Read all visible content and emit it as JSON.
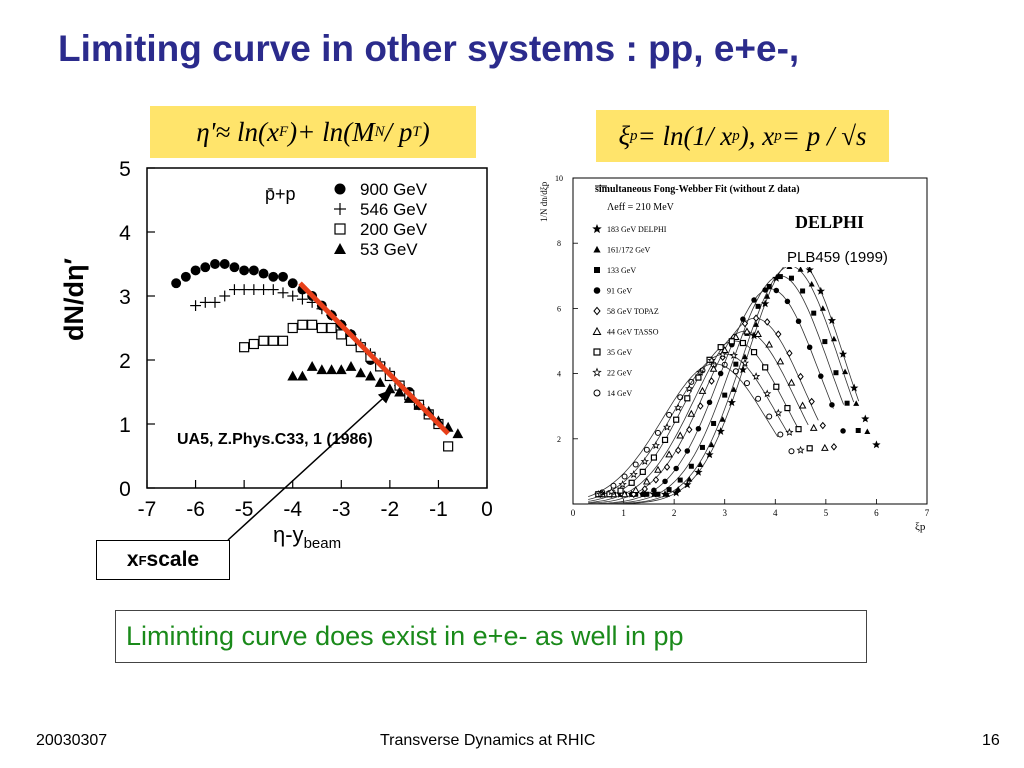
{
  "slide": {
    "title": "Limiting curve in other systems : pp, e+e-,",
    "conclusion": "Liminting curve does exist in e+e- as well in pp",
    "xf_label": "x",
    "xf_sub": "F",
    "xf_suffix": " scale",
    "ylabel_outer": "dN/dη′"
  },
  "formulas": {
    "left_parts": [
      "η'≈ ln(x",
      "F",
      ")+ ln(M",
      "N",
      " / p",
      "T",
      ")"
    ],
    "right_parts": [
      "ξ",
      "p",
      " = ln(1/ x",
      "p",
      "), x",
      "p",
      " = p / √s"
    ]
  },
  "footer": {
    "date": "20030307",
    "center": "Transverse Dynamics at RHIC",
    "page": "16"
  },
  "colors": {
    "title": "#2b2b8c",
    "formula_bg": "#ffe46b",
    "conclusion_text": "#1a8a1a",
    "fit_line": "#e8401a"
  },
  "chart_data": [
    {
      "type": "scatter",
      "title": "",
      "xlabel": "η-y",
      "xlabel_sub": "beam",
      "ylabel": "",
      "xlim": [
        -7,
        0
      ],
      "ylim": [
        0,
        5
      ],
      "xticks": [
        "-7",
        "-6",
        "-5",
        "-4",
        "-3",
        "-2",
        "-1",
        "0"
      ],
      "yticks": [
        "0",
        "1",
        "2",
        "3",
        "4",
        "5"
      ],
      "legend_title": "p̄+p",
      "legend_position": "top-right",
      "annotation": "UA5, Z.Phys.C33, 1 (1986)",
      "series": [
        {
          "name": "900 GeV",
          "marker": "●",
          "x": [
            -6.4,
            -6.2,
            -6.0,
            -5.8,
            -5.6,
            -5.4,
            -5.2,
            -5.0,
            -4.8,
            -4.6,
            -4.4,
            -4.2,
            -4.0,
            -3.8,
            -3.6,
            -3.4,
            -3.2,
            -3.0,
            -2.8,
            -2.6,
            -2.4,
            -2.2,
            -2.0,
            -1.8,
            -1.6
          ],
          "y": [
            3.2,
            3.3,
            3.4,
            3.45,
            3.5,
            3.5,
            3.45,
            3.4,
            3.4,
            3.35,
            3.3,
            3.3,
            3.2,
            3.1,
            3.0,
            2.85,
            2.7,
            2.55,
            2.4,
            2.2,
            2.0,
            1.9,
            1.75,
            1.6,
            1.5
          ]
        },
        {
          "name": "546 GeV",
          "marker": "+",
          "x": [
            -6.0,
            -5.8,
            -5.6,
            -5.4,
            -5.2,
            -5.0,
            -4.8,
            -4.6,
            -4.4,
            -4.2,
            -4.0,
            -3.8,
            -3.6,
            -3.4,
            -3.2,
            -3.0,
            -2.8,
            -2.6,
            -2.4,
            -2.2,
            -2.0,
            -1.8,
            -1.6,
            -1.4
          ],
          "y": [
            2.85,
            2.9,
            2.9,
            3.0,
            3.1,
            3.1,
            3.1,
            3.1,
            3.1,
            3.05,
            3.0,
            2.95,
            2.9,
            2.8,
            2.7,
            2.55,
            2.4,
            2.25,
            2.1,
            1.95,
            1.8,
            1.6,
            1.45,
            1.3
          ]
        },
        {
          "name": "200 GeV",
          "marker": "□",
          "x": [
            -5.0,
            -4.8,
            -4.6,
            -4.4,
            -4.2,
            -4.0,
            -3.8,
            -3.6,
            -3.4,
            -3.2,
            -3.0,
            -2.8,
            -2.6,
            -2.4,
            -2.2,
            -2.0,
            -1.8,
            -1.6,
            -1.4,
            -1.2,
            -1.0,
            -0.8
          ],
          "y": [
            2.2,
            2.25,
            2.3,
            2.3,
            2.3,
            2.5,
            2.55,
            2.55,
            2.5,
            2.5,
            2.4,
            2.3,
            2.2,
            2.05,
            1.9,
            1.75,
            1.6,
            1.45,
            1.3,
            1.15,
            1.0,
            0.65
          ]
        },
        {
          "name": "53 GeV",
          "marker": "▲",
          "x": [
            -4.0,
            -3.8,
            -3.6,
            -3.4,
            -3.2,
            -3.0,
            -2.8,
            -2.6,
            -2.4,
            -2.2,
            -2.0,
            -1.8,
            -1.6,
            -1.4,
            -1.2,
            -1.0,
            -0.8,
            -0.6
          ],
          "y": [
            1.75,
            1.75,
            1.9,
            1.85,
            1.85,
            1.85,
            1.9,
            1.8,
            1.75,
            1.65,
            1.55,
            1.5,
            1.4,
            1.3,
            1.2,
            1.05,
            0.95,
            0.85
          ]
        }
      ]
    },
    {
      "type": "scatter",
      "title": "DELPHI",
      "reference": "PLB459 (1999)",
      "xlabel": "ξp",
      "ylabel": "1/N dn/dξp",
      "xlim": [
        0,
        7
      ],
      "ylim": [
        0,
        10
      ],
      "xticks": [
        "0",
        "1",
        "2",
        "3",
        "4",
        "5",
        "6",
        "7"
      ],
      "yticks": [
        "2",
        "4",
        "6",
        "8",
        "10"
      ],
      "legend_position": "top-left",
      "fit_label": "simultaneous Fong-Webber Fit (without Z data)",
      "lambda_label": "Λeff = 210 MeV",
      "series": [
        {
          "name": "183 GeV  DELPHI",
          "marker": "★",
          "peak_x": 4.4,
          "peak_y": 7.5
        },
        {
          "name": "161/172 GeV",
          "marker": "▲",
          "peak_x": 4.3,
          "peak_y": 7.3
        },
        {
          "name": "133 GeV",
          "marker": "■",
          "peak_x": 4.1,
          "peak_y": 7.0
        },
        {
          "name": "91 GeV",
          "marker": "●",
          "peak_x": 3.9,
          "peak_y": 6.6
        },
        {
          "name": "58 GeV   TOPAZ",
          "marker": "◇",
          "peak_x": 3.6,
          "peak_y": 5.7
        },
        {
          "name": "44 GeV   TASSO",
          "marker": "△",
          "peak_x": 3.4,
          "peak_y": 5.3
        },
        {
          "name": "35 GeV",
          "marker": "□",
          "peak_x": 3.2,
          "peak_y": 5.0
        },
        {
          "name": "22 GeV",
          "marker": "☆",
          "peak_x": 3.0,
          "peak_y": 4.6
        },
        {
          "name": "14 GeV",
          "marker": "○",
          "peak_x": 2.8,
          "peak_y": 4.3
        }
      ]
    }
  ]
}
